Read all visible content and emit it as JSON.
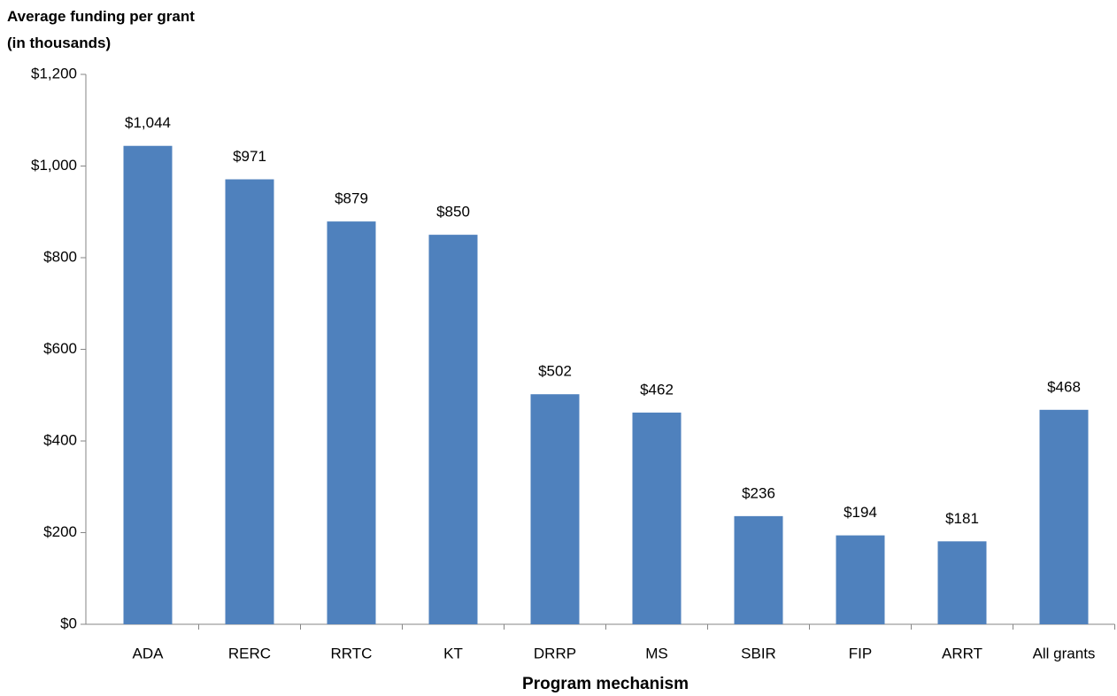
{
  "chart_data": {
    "type": "bar",
    "y_axis_label": "Average funding per grant (in thousands)",
    "x_axis_label": "Program mechanism",
    "categories": [
      "ADA",
      "RERC",
      "RRTC",
      "KT",
      "DRRP",
      "MS",
      "SBIR",
      "FIP",
      "ARRT",
      "All grants"
    ],
    "values": [
      1044,
      971,
      879,
      850,
      502,
      462,
      236,
      194,
      181,
      468
    ],
    "value_labels": [
      "$1,044",
      "$971",
      "$879",
      "$850",
      "$502",
      "$462",
      "$236",
      "$194",
      "$181",
      "$468"
    ],
    "color": "#4f81bd",
    "ylim": [
      0,
      1200
    ],
    "yticks": [
      {
        "value": 0,
        "label": "$0"
      },
      {
        "value": 200,
        "label": "$200"
      },
      {
        "value": 400,
        "label": "$400"
      },
      {
        "value": 600,
        "label": "$600"
      },
      {
        "value": 800,
        "label": "$800"
      },
      {
        "value": 1000,
        "label": "$1,000"
      },
      {
        "value": 1200,
        "label": "$1,200"
      }
    ],
    "grid": false
  }
}
